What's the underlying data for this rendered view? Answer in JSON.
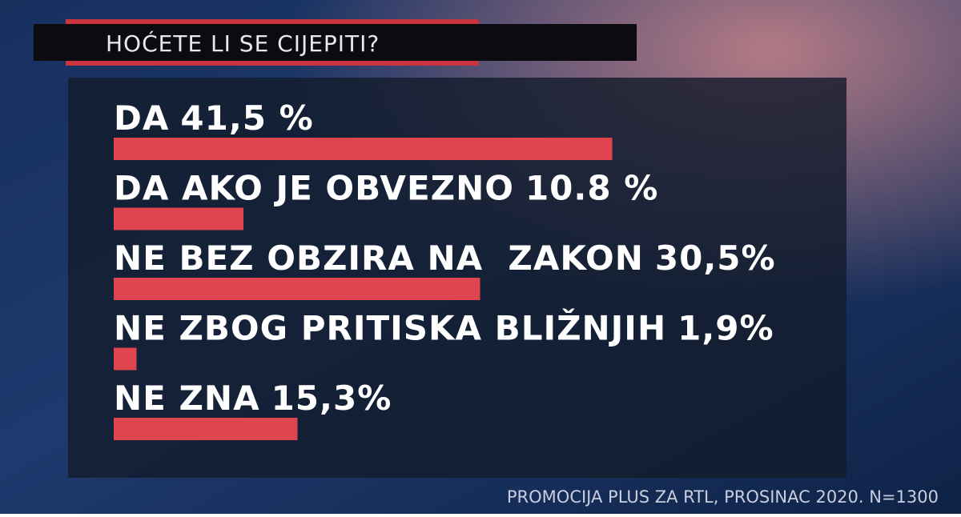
{
  "chart_data": {
    "type": "bar",
    "title": "HOĆETE LI SE CIJEPITI?",
    "categories": [
      "DA",
      "DA AKO JE OBVEZNO",
      "NE BEZ OBZIRA NA  ZAKON",
      "NE ZBOG PRITISKA BLIŽNJIH",
      "NE ZNA"
    ],
    "values": [
      41.5,
      10.8,
      30.5,
      1.9,
      15.3
    ],
    "value_labels": [
      "41,5 %",
      "10.8 %",
      "30,5%",
      "1,9%",
      "15,3%"
    ],
    "color": "#e0444e",
    "source": "PROMOCIJA PLUS ZA RTL, PROSINAC 2020. N=1300"
  }
}
